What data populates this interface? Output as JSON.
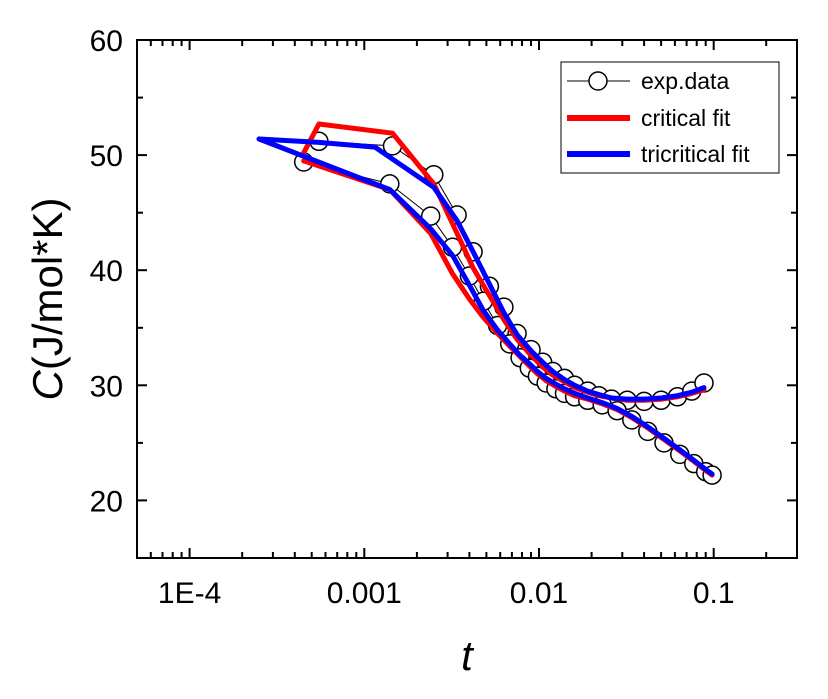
{
  "chart_data": {
    "type": "line",
    "title": "",
    "xlabel": "t",
    "ylabel_italic_part": "C",
    "ylabel_rest": "(J/mol*K)",
    "xscale": "log",
    "xlim": [
      5e-05,
      0.3
    ],
    "ylim": [
      15,
      60
    ],
    "grid": false,
    "legend_position": "top-right",
    "x_tick_values": [
      0.0001,
      0.001,
      0.01,
      0.1
    ],
    "x_tick_labels": [
      "1E-4",
      "0.001",
      "0.01",
      "0.1"
    ],
    "y_tick_values": [
      20,
      30,
      40,
      50,
      60
    ],
    "y_tick_labels": [
      "20",
      "30",
      "40",
      "50",
      "60"
    ],
    "colors": {
      "exp": "#000000",
      "critical": "#ff0000",
      "tricritical": "#0000ff"
    },
    "series": [
      {
        "name": "exp.data",
        "style": "open-circle-line",
        "branches": [
          {
            "x": [
              0.00055,
              0.00145,
              0.0025,
              0.0034,
              0.0042,
              0.0052,
              0.0063,
              0.0075,
              0.009,
              0.0105,
              0.012,
              0.014,
              0.016,
              0.019,
              0.022,
              0.026,
              0.032,
              0.04,
              0.05,
              0.062,
              0.075,
              0.088
            ],
            "y": [
              51.2,
              50.8,
              48.3,
              44.8,
              41.6,
              38.6,
              36.8,
              34.5,
              33.1,
              32.0,
              31.2,
              30.6,
              30.0,
              29.5,
              29.1,
              28.8,
              28.7,
              28.6,
              28.7,
              29.0,
              29.5,
              30.2
            ]
          },
          {
            "x": [
              0.00045,
              0.0014,
              0.0024,
              0.0032,
              0.004,
              0.0048,
              0.0058,
              0.0068,
              0.0078,
              0.0088,
              0.0098,
              0.011,
              0.0125,
              0.014,
              0.016,
              0.019,
              0.023,
              0.028,
              0.034,
              0.042,
              0.052,
              0.064,
              0.077,
              0.09,
              0.098
            ],
            "y": [
              49.4,
              47.5,
              44.7,
              42.0,
              39.5,
              37.3,
              35.2,
              33.6,
              32.4,
              31.5,
              30.8,
              30.2,
              29.7,
              29.3,
              29.0,
              28.7,
              28.3,
              27.8,
              27.0,
              26.0,
              25.0,
              24.0,
              23.2,
              22.5,
              22.2
            ]
          }
        ]
      },
      {
        "name": "critical fit",
        "style": "line",
        "branches": [
          {
            "x": [
              0.00045,
              0.00055,
              0.00145,
              0.0025,
              0.0034,
              0.0042,
              0.0052,
              0.0063,
              0.0075,
              0.009,
              0.0105,
              0.012,
              0.014,
              0.016,
              0.019,
              0.022,
              0.026,
              0.032,
              0.04,
              0.05,
              0.062,
              0.075,
              0.088
            ],
            "y": [
              50.2,
              52.7,
              51.9,
              47.5,
              43.2,
              40.2,
              37.8,
              35.7,
              34.0,
              32.6,
              31.6,
              30.9,
              30.3,
              29.8,
              29.4,
              29.1,
              28.9,
              28.7,
              28.7,
              28.8,
              29.0,
              29.3,
              29.6
            ]
          },
          {
            "x": [
              0.00045,
              0.0014,
              0.0024,
              0.0032,
              0.004,
              0.0048,
              0.0058,
              0.0068,
              0.0078,
              0.0088,
              0.0098,
              0.011,
              0.0125,
              0.014,
              0.016,
              0.019,
              0.023,
              0.028,
              0.034,
              0.042,
              0.052,
              0.064,
              0.077,
              0.09,
              0.098
            ],
            "y": [
              49.5,
              47.0,
              43.2,
              39.7,
              37.5,
              35.9,
              34.5,
              33.4,
              32.5,
              31.7,
              31.0,
              30.4,
              29.9,
              29.5,
              29.1,
              28.8,
              28.4,
              27.9,
              27.2,
              26.3,
              25.3,
              24.3,
              23.4,
              22.6,
              22.2
            ]
          }
        ]
      },
      {
        "name": "tricritical fit",
        "style": "line",
        "branches": [
          {
            "x": [
              0.00025,
              0.00055,
              0.00115,
              0.0025,
              0.0034,
              0.0042,
              0.0052,
              0.0063,
              0.0075,
              0.009,
              0.0105,
              0.012,
              0.014,
              0.016,
              0.019,
              0.022,
              0.026,
              0.032,
              0.04,
              0.05,
              0.062,
              0.075,
              0.088
            ],
            "y": [
              51.4,
              51.1,
              50.7,
              47.2,
              44.3,
              41.6,
              38.8,
              36.3,
              34.4,
              33.0,
              32.0,
              31.2,
              30.5,
              30.0,
              29.5,
              29.2,
              28.9,
              28.8,
              28.8,
              28.9,
              29.1,
              29.4,
              29.8
            ]
          },
          {
            "x": [
              0.00025,
              0.0014,
              0.0024,
              0.0032,
              0.004,
              0.0048,
              0.0058,
              0.0068,
              0.0078,
              0.0088,
              0.0098,
              0.011,
              0.0125,
              0.014,
              0.016,
              0.019,
              0.023,
              0.028,
              0.034,
              0.042,
              0.052,
              0.064,
              0.077,
              0.09,
              0.098
            ],
            "y": [
              51.4,
              47.0,
              43.6,
              41.3,
              38.7,
              36.5,
              34.8,
              33.6,
              32.6,
              31.9,
              31.2,
              30.6,
              30.1,
              29.7,
              29.3,
              28.9,
              28.5,
              28.0,
              27.3,
              26.4,
              25.4,
              24.4,
              23.5,
              22.7,
              22.3
            ]
          }
        ]
      }
    ]
  }
}
